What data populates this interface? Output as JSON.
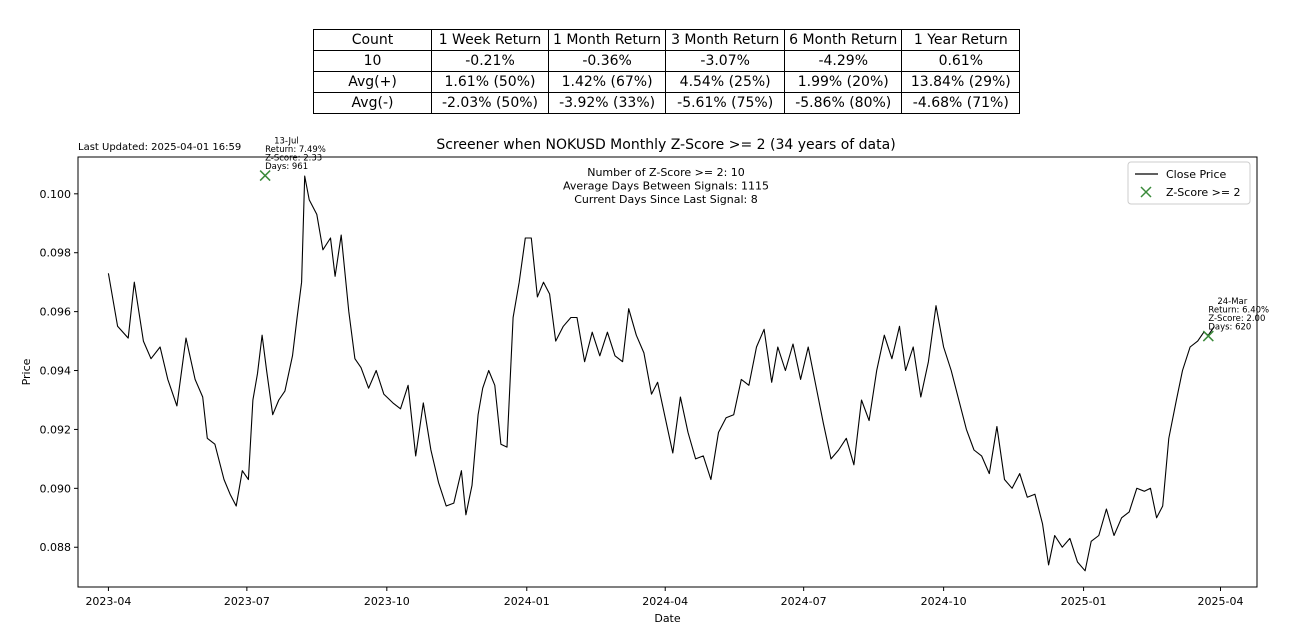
{
  "last_updated": "Last Updated: 2025-04-01 16:59",
  "table": {
    "header": [
      "Count",
      "1 Week Return",
      "1 Month Return",
      "3 Month Return",
      "6 Month Return",
      "1 Year Return"
    ],
    "rows": [
      [
        "10",
        "-0.21%",
        "-0.36%",
        "-3.07%",
        "-4.29%",
        "0.61%"
      ],
      [
        "Avg(+)",
        "1.61% (50%)",
        "1.42% (67%)",
        "4.54% (25%)",
        "1.99% (20%)",
        "13.84% (29%)"
      ],
      [
        "Avg(-)",
        "-2.03% (50%)",
        "-3.92% (33%)",
        "-5.61% (75%)",
        "-5.86% (80%)",
        "-4.68% (71%)"
      ]
    ]
  },
  "chart_data": {
    "type": "line",
    "title": "Screener when NOKUSD Monthly Z-Score >= 2 (34 years of data)",
    "xlabel": "Date",
    "ylabel": "Price",
    "xlim": [
      "2023-03-12",
      "2025-04-25"
    ],
    "ylim": [
      0.08665,
      0.10125
    ],
    "x_ticks": [
      "2023-04",
      "2023-07",
      "2023-10",
      "2024-01",
      "2024-04",
      "2024-07",
      "2024-10",
      "2025-01",
      "2025-04"
    ],
    "y_ticks": [
      "0.088",
      "0.090",
      "0.092",
      "0.094",
      "0.096",
      "0.098",
      "0.100"
    ],
    "legend": {
      "placement": "top-right",
      "entries": [
        "Close Price",
        "Z-Score >= 2"
      ]
    },
    "grid": false,
    "colors": {
      "line": "#000000",
      "marker": "#3a8a3a"
    },
    "info_box": [
      "Number of Z-Score >= 2: 10",
      "Average Days Between Signals: 1115",
      "Current Days Since Last Signal: 8"
    ],
    "series": [
      {
        "name": "Close Price",
        "points": [
          [
            "2023-04-01",
            0.0973
          ],
          [
            "2023-04-07",
            0.0955
          ],
          [
            "2023-04-14",
            0.0951
          ],
          [
            "2023-04-18",
            0.097
          ],
          [
            "2023-04-24",
            0.095
          ],
          [
            "2023-04-29",
            0.0944
          ],
          [
            "2023-05-05",
            0.0948
          ],
          [
            "2023-05-10",
            0.0937
          ],
          [
            "2023-05-16",
            0.0928
          ],
          [
            "2023-05-22",
            0.0951
          ],
          [
            "2023-05-28",
            0.0937
          ],
          [
            "2023-06-02",
            0.0931
          ],
          [
            "2023-06-05",
            0.0917
          ],
          [
            "2023-06-10",
            0.0915
          ],
          [
            "2023-06-16",
            0.0903
          ],
          [
            "2023-06-20",
            0.0898
          ],
          [
            "2023-06-24",
            0.0894
          ],
          [
            "2023-06-28",
            0.0906
          ],
          [
            "2023-07-02",
            0.0903
          ],
          [
            "2023-07-05",
            0.093
          ],
          [
            "2023-07-08",
            0.0939
          ],
          [
            "2023-07-11",
            0.0952
          ],
          [
            "2023-07-14",
            0.094
          ],
          [
            "2023-07-18",
            0.0925
          ],
          [
            "2023-07-22",
            0.093
          ],
          [
            "2023-07-26",
            0.0933
          ],
          [
            "2023-07-31",
            0.0945
          ],
          [
            "2023-08-03",
            0.0958
          ],
          [
            "2023-08-06",
            0.097
          ],
          [
            "2023-08-08",
            0.1006
          ],
          [
            "2023-08-11",
            0.0998
          ],
          [
            "2023-08-16",
            0.0993
          ],
          [
            "2023-08-20",
            0.0981
          ],
          [
            "2023-08-25",
            0.0985
          ],
          [
            "2023-08-28",
            0.0972
          ],
          [
            "2023-09-01",
            0.0986
          ],
          [
            "2023-09-06",
            0.096
          ],
          [
            "2023-09-10",
            0.0944
          ],
          [
            "2023-09-14",
            0.0941
          ],
          [
            "2023-09-19",
            0.0934
          ],
          [
            "2023-09-24",
            0.094
          ],
          [
            "2023-09-29",
            0.0932
          ],
          [
            "2023-10-05",
            0.0929
          ],
          [
            "2023-10-10",
            0.0927
          ],
          [
            "2023-10-15",
            0.0935
          ],
          [
            "2023-10-20",
            0.0911
          ],
          [
            "2023-10-25",
            0.0929
          ],
          [
            "2023-10-30",
            0.0913
          ],
          [
            "2023-11-04",
            0.0902
          ],
          [
            "2023-11-09",
            0.0894
          ],
          [
            "2023-11-14",
            0.0895
          ],
          [
            "2023-11-19",
            0.0906
          ],
          [
            "2023-11-22",
            0.0891
          ],
          [
            "2023-11-26",
            0.0901
          ],
          [
            "2023-11-30",
            0.0925
          ],
          [
            "2023-12-03",
            0.0934
          ],
          [
            "2023-12-07",
            0.094
          ],
          [
            "2023-12-11",
            0.0935
          ],
          [
            "2023-12-15",
            0.0915
          ],
          [
            "2023-12-19",
            0.0914
          ],
          [
            "2023-12-23",
            0.0958
          ],
          [
            "2023-12-27",
            0.097
          ],
          [
            "2023-12-31",
            0.0985
          ],
          [
            "2024-01-04",
            0.0985
          ],
          [
            "2024-01-08",
            0.0965
          ],
          [
            "2024-01-12",
            0.097
          ],
          [
            "2024-01-16",
            0.0966
          ],
          [
            "2024-01-20",
            0.095
          ],
          [
            "2024-01-25",
            0.0955
          ],
          [
            "2024-01-30",
            0.0958
          ],
          [
            "2024-02-03",
            0.0958
          ],
          [
            "2024-02-08",
            0.0943
          ],
          [
            "2024-02-13",
            0.0953
          ],
          [
            "2024-02-18",
            0.0945
          ],
          [
            "2024-02-23",
            0.0953
          ],
          [
            "2024-02-28",
            0.0945
          ],
          [
            "2024-03-04",
            0.0943
          ],
          [
            "2024-03-08",
            0.0961
          ],
          [
            "2024-03-13",
            0.0952
          ],
          [
            "2024-03-18",
            0.0946
          ],
          [
            "2024-03-23",
            0.0932
          ],
          [
            "2024-03-27",
            0.0936
          ],
          [
            "2024-04-01",
            0.0924
          ],
          [
            "2024-04-06",
            0.0912
          ],
          [
            "2024-04-11",
            0.0931
          ],
          [
            "2024-04-16",
            0.0919
          ],
          [
            "2024-04-21",
            0.091
          ],
          [
            "2024-04-26",
            0.0911
          ],
          [
            "2024-05-01",
            0.0903
          ],
          [
            "2024-05-06",
            0.0919
          ],
          [
            "2024-05-11",
            0.0924
          ],
          [
            "2024-05-16",
            0.0925
          ],
          [
            "2024-05-21",
            0.0937
          ],
          [
            "2024-05-26",
            0.0935
          ],
          [
            "2024-05-31",
            0.0948
          ],
          [
            "2024-06-05",
            0.0954
          ],
          [
            "2024-06-10",
            0.0936
          ],
          [
            "2024-06-14",
            0.0948
          ],
          [
            "2024-06-19",
            0.094
          ],
          [
            "2024-06-24",
            0.0949
          ],
          [
            "2024-06-29",
            0.0937
          ],
          [
            "2024-07-04",
            0.0948
          ],
          [
            "2024-07-09",
            0.0935
          ],
          [
            "2024-07-14",
            0.0922
          ],
          [
            "2024-07-19",
            0.091
          ],
          [
            "2024-07-24",
            0.0913
          ],
          [
            "2024-07-29",
            0.0917
          ],
          [
            "2024-08-03",
            0.0908
          ],
          [
            "2024-08-08",
            0.093
          ],
          [
            "2024-08-13",
            0.0923
          ],
          [
            "2024-08-18",
            0.094
          ],
          [
            "2024-08-23",
            0.0952
          ],
          [
            "2024-08-28",
            0.0944
          ],
          [
            "2024-09-02",
            0.0955
          ],
          [
            "2024-09-06",
            0.094
          ],
          [
            "2024-09-11",
            0.0948
          ],
          [
            "2024-09-16",
            0.0931
          ],
          [
            "2024-09-21",
            0.0943
          ],
          [
            "2024-09-26",
            0.0962
          ],
          [
            "2024-10-01",
            0.0948
          ],
          [
            "2024-10-06",
            0.094
          ],
          [
            "2024-10-11",
            0.093
          ],
          [
            "2024-10-16",
            0.092
          ],
          [
            "2024-10-21",
            0.0913
          ],
          [
            "2024-10-26",
            0.0911
          ],
          [
            "2024-10-31",
            0.0905
          ],
          [
            "2024-11-05",
            0.0921
          ],
          [
            "2024-11-10",
            0.0903
          ],
          [
            "2024-11-15",
            0.09
          ],
          [
            "2024-11-20",
            0.0905
          ],
          [
            "2024-11-25",
            0.0897
          ],
          [
            "2024-11-30",
            0.0898
          ],
          [
            "2024-12-05",
            0.0888
          ],
          [
            "2024-12-09",
            0.0874
          ],
          [
            "2024-12-13",
            0.0884
          ],
          [
            "2024-12-18",
            0.088
          ],
          [
            "2024-12-23",
            0.0883
          ],
          [
            "2024-12-28",
            0.0875
          ],
          [
            "2025-01-02",
            0.0872
          ],
          [
            "2025-01-06",
            0.0882
          ],
          [
            "2025-01-11",
            0.0884
          ],
          [
            "2025-01-16",
            0.0893
          ],
          [
            "2025-01-21",
            0.0884
          ],
          [
            "2025-01-26",
            0.089
          ],
          [
            "2025-01-31",
            0.0892
          ],
          [
            "2025-02-05",
            0.09
          ],
          [
            "2025-02-10",
            0.0899
          ],
          [
            "2025-02-14",
            0.09
          ],
          [
            "2025-02-18",
            0.089
          ],
          [
            "2025-02-22",
            0.0894
          ],
          [
            "2025-02-26",
            0.0917
          ],
          [
            "2025-03-03",
            0.093
          ],
          [
            "2025-03-07",
            0.094
          ],
          [
            "2025-03-12",
            0.0948
          ],
          [
            "2025-03-17",
            0.095
          ],
          [
            "2025-03-21",
            0.0953
          ],
          [
            "2025-03-24",
            0.0952
          ],
          [
            "2025-03-28",
            0.0955
          ]
        ]
      },
      {
        "name": "Z-Score >= 2",
        "markers": [
          {
            "date": "2023-07-13",
            "value": 0.10062,
            "label": [
              "13-Jul",
              "Return: 7.49%",
              "Z-Score: 2.33",
              "Days: 961"
            ]
          },
          {
            "date": "2025-03-24",
            "value": 0.09517,
            "label": [
              "24-Mar",
              "Return: 6.40%",
              "Z-Score: 2.00",
              "Days: 620"
            ]
          }
        ]
      }
    ]
  }
}
